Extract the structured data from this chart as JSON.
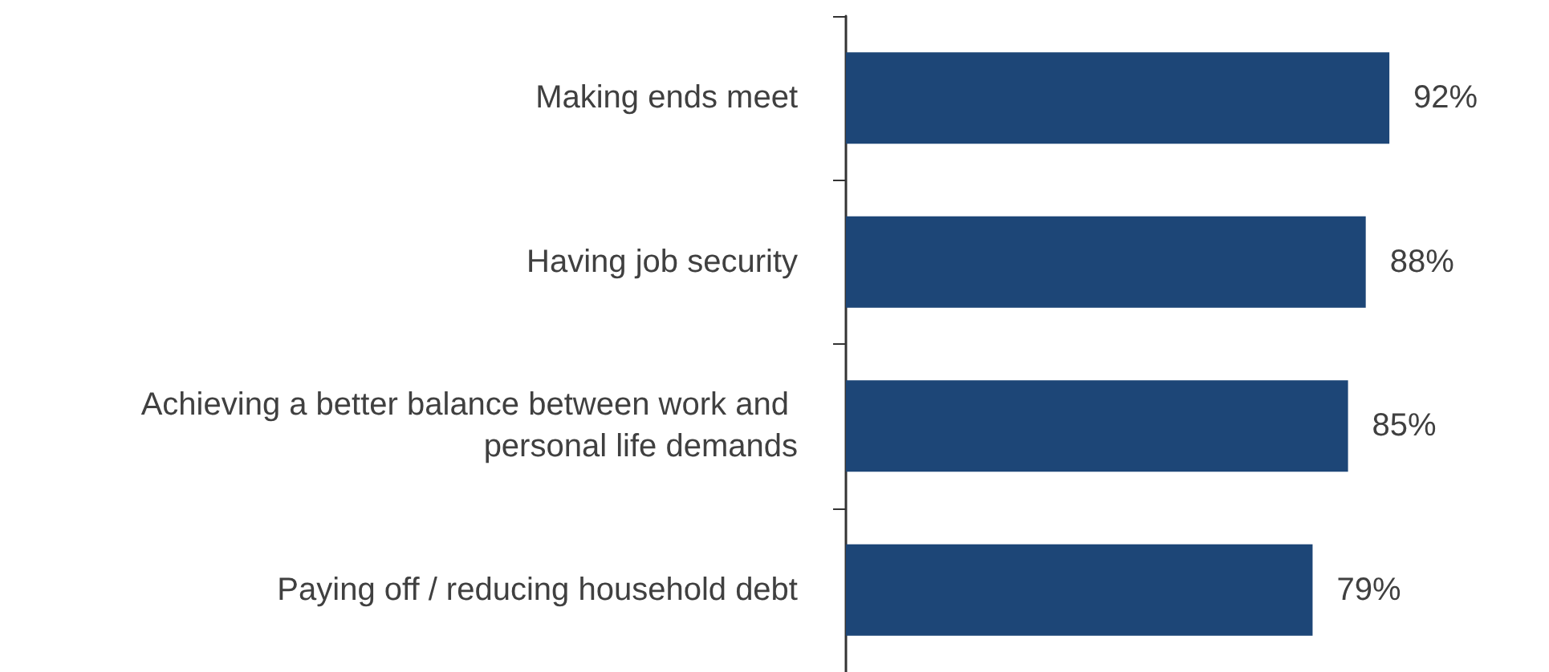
{
  "chart_data": {
    "type": "bar",
    "orientation": "horizontal",
    "categories": [
      "Making ends meet",
      "Having job security",
      "Achieving a better balance between work and personal life demands",
      "Paying off / reducing household debt"
    ],
    "values": [
      92,
      88,
      85,
      79
    ],
    "value_labels": [
      "92%",
      "88%",
      "85%",
      "79%"
    ],
    "color": "#1d4677",
    "tick_labels": "y"
  }
}
